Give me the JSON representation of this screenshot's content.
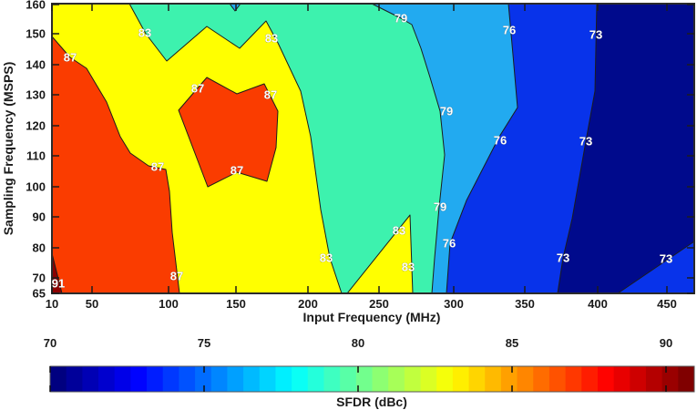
{
  "figure": {
    "x_axis": {
      "title": "Input Frequency (MHz)",
      "ticks": [
        {
          "label": "10",
          "px": 57
        },
        {
          "label": "50",
          "px": 101
        },
        {
          "label": "100",
          "px": 185
        },
        {
          "label": "150",
          "px": 259
        },
        {
          "label": "200",
          "px": 338
        },
        {
          "label": "250",
          "px": 416
        },
        {
          "label": "300",
          "px": 498
        },
        {
          "label": "350",
          "px": 576
        },
        {
          "label": "400",
          "px": 656
        },
        {
          "label": "450",
          "px": 732
        }
      ]
    },
    "y_axis": {
      "title": "Sampling Frequency (MSPS)",
      "ticks": [
        {
          "label": "65",
          "px": 322
        },
        {
          "label": "70",
          "px": 305
        },
        {
          "label": "80",
          "px": 272
        },
        {
          "label": "90",
          "px": 238
        },
        {
          "label": "100",
          "px": 205
        },
        {
          "label": "110",
          "px": 171
        },
        {
          "label": "120",
          "px": 138
        },
        {
          "label": "130",
          "px": 104
        },
        {
          "label": "140",
          "px": 71
        },
        {
          "label": "150",
          "px": 37
        },
        {
          "label": "160",
          "px": 5
        }
      ]
    },
    "colorbar": {
      "title": "SFDR (dBc)",
      "ticks": [
        {
          "label": "70",
          "px": 55
        },
        {
          "label": "75",
          "px": 224
        },
        {
          "label": "80",
          "px": 393
        },
        {
          "label": "85",
          "px": 562
        },
        {
          "label": "90",
          "px": 731
        }
      ]
    }
  },
  "chart_data": {
    "type": "heatmap",
    "subtype": "filled-contour",
    "title": "",
    "xlabel": "Input Frequency (MHz)",
    "ylabel": "Sampling Frequency (MSPS)",
    "zlabel": "SFDR (dBc)",
    "x_range_mhz": [
      10,
      470
    ],
    "y_range_msps": [
      65,
      160
    ],
    "colorbar_range_dbc": [
      70,
      91
    ],
    "colormap": "jet",
    "grid": false,
    "contour_levels_dbc": [
      73,
      76,
      79,
      83,
      87,
      91
    ],
    "bands": [
      {
        "name": "below-73",
        "range_dbc": "<73",
        "color": "#000a8c"
      },
      {
        "name": "73-76",
        "range_dbc": "73-76",
        "color": "#0833ea"
      },
      {
        "name": "76-79",
        "range_dbc": "76-79",
        "color": "#22aaf0"
      },
      {
        "name": "79-83",
        "range_dbc": "79-83",
        "color": "#3df2ae"
      },
      {
        "name": "83-87",
        "range_dbc": "83-87",
        "color": "#ffff00"
      },
      {
        "name": "87-91",
        "range_dbc": "87-91",
        "color": "#fa3c00"
      },
      {
        "name": "above-91",
        "range_dbc": ">91",
        "color": "#8c0000"
      }
    ],
    "contour_labels": [
      {
        "value": "87",
        "px": [
          77,
          63
        ],
        "at_mhz": 28,
        "at_msps": 143
      },
      {
        "value": "83",
        "px": [
          159,
          36
        ],
        "at_mhz": 85,
        "at_msps": 151
      },
      {
        "value": "87",
        "px": [
          217,
          97
        ],
        "at_mhz": 122,
        "at_msps": 132
      },
      {
        "value": "83",
        "px": [
          298,
          42
        ],
        "at_mhz": 176,
        "at_msps": 149
      },
      {
        "value": "87",
        "px": [
          297,
          104
        ],
        "at_mhz": 175,
        "at_msps": 130
      },
      {
        "value": "79",
        "px": [
          440,
          20
        ],
        "at_mhz": 265,
        "at_msps": 155
      },
      {
        "value": "76",
        "px": [
          559,
          33
        ],
        "at_mhz": 339,
        "at_msps": 151
      },
      {
        "value": "73",
        "px": [
          654,
          38
        ],
        "at_mhz": 399,
        "at_msps": 150
      },
      {
        "value": "79",
        "px": [
          490,
          122
        ],
        "at_mhz": 295,
        "at_msps": 125
      },
      {
        "value": "76",
        "px": [
          549,
          154
        ],
        "at_mhz": 332,
        "at_msps": 115
      },
      {
        "value": "73",
        "px": [
          643,
          155
        ],
        "at_mhz": 392,
        "at_msps": 115
      },
      {
        "value": "87",
        "px": [
          173,
          183
        ],
        "at_mhz": 93,
        "at_msps": 106
      },
      {
        "value": "87",
        "px": [
          260,
          187
        ],
        "at_mhz": 151,
        "at_msps": 105
      },
      {
        "value": "79",
        "px": [
          483,
          227
        ],
        "at_mhz": 291,
        "at_msps": 93
      },
      {
        "value": "83",
        "px": [
          438,
          253
        ],
        "at_mhz": 264,
        "at_msps": 86
      },
      {
        "value": "76",
        "px": [
          493,
          267
        ],
        "at_mhz": 297,
        "at_msps": 81
      },
      {
        "value": "83",
        "px": [
          358,
          283
        ],
        "at_mhz": 213,
        "at_msps": 77
      },
      {
        "value": "83",
        "px": [
          448,
          293
        ],
        "at_mhz": 270,
        "at_msps": 74
      },
      {
        "value": "73",
        "px": [
          618,
          283
        ],
        "at_mhz": 376,
        "at_msps": 77
      },
      {
        "value": "73",
        "px": [
          731,
          284
        ],
        "at_mhz": 449,
        "at_msps": 76
      },
      {
        "value": "87",
        "px": [
          194,
          303
        ],
        "at_mhz": 107,
        "at_msps": 71
      },
      {
        "value": "91",
        "px": [
          64,
          311
        ],
        "at_mhz": 16,
        "at_msps": 68
      }
    ]
  }
}
